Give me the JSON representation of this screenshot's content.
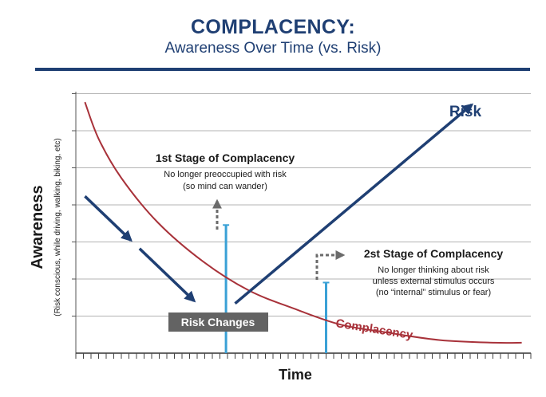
{
  "header": {
    "title": "COMPLACENCY:",
    "subtitle": "Awareness Over Time (vs. Risk)"
  },
  "colors": {
    "navy": "#1f3f73",
    "crimson": "#a8323a",
    "cyan": "#3aa1d6",
    "grid": "#b3b3b3",
    "gray_label_bg": "#636363"
  },
  "chart_data": {
    "type": "line",
    "xlabel": "Time",
    "ylabel": "Awareness",
    "ylabel_sub": "(Risk conscious, while driving, walking, biking, etc)",
    "grid": true,
    "xlim": [
      0,
      1
    ],
    "ylim": [
      0,
      1
    ],
    "series": [
      {
        "name": "Complacency",
        "style": "curve",
        "points": [
          [
            0.02,
            0.96
          ],
          [
            0.05,
            0.82
          ],
          [
            0.1,
            0.67
          ],
          [
            0.18,
            0.5
          ],
          [
            0.28,
            0.35
          ],
          [
            0.38,
            0.24
          ],
          [
            0.48,
            0.17
          ],
          [
            0.58,
            0.11
          ],
          [
            0.68,
            0.08
          ],
          [
            0.8,
            0.05
          ],
          [
            0.92,
            0.04
          ],
          [
            0.98,
            0.04
          ]
        ]
      },
      {
        "name": "Risk",
        "style": "arrow",
        "points": [
          [
            0.35,
            0.19
          ],
          [
            0.87,
            0.95
          ]
        ]
      },
      {
        "name": "",
        "style": "dashed-arrow",
        "points": [
          [
            0.02,
            0.6
          ],
          [
            0.26,
            0.2
          ]
        ]
      }
    ],
    "markers": [
      {
        "x": 0.33,
        "y_top": 0.49
      },
      {
        "x": 0.55,
        "y_top": 0.27
      }
    ],
    "annotations": {
      "stage1_title": "1st Stage of Complacency",
      "stage1_line1": "No longer preoccupied with risk",
      "stage1_line2": "(so mind can wander)",
      "stage2_title": "2st Stage of Complacency",
      "stage2_line1": "No longer thinking about risk",
      "stage2_line2": "unless external stimulus occurs",
      "stage2_line3": "(no “internal” stimulus or fear)",
      "risk_changes": "Risk Changes",
      "complacency_label": "Complacency",
      "risk_label": "Risk"
    }
  }
}
